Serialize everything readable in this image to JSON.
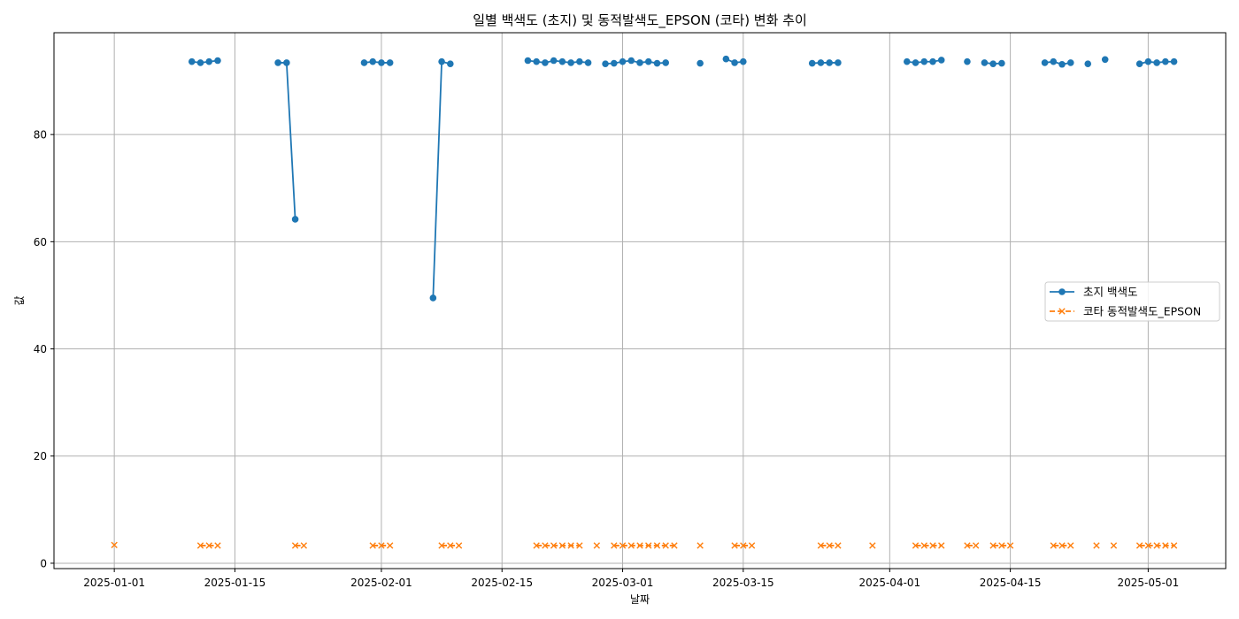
{
  "chart_data": {
    "type": "line",
    "title": "일별 백색도 (초지) 및 동적발색도_EPSON (코타) 변화 추이",
    "xlabel": "날짜",
    "ylabel": "값",
    "x_tick_labels": [
      "2025-01-01",
      "2025-01-15",
      "2025-02-01",
      "2025-02-15",
      "2025-03-01",
      "2025-03-15",
      "2025-04-01",
      "2025-04-15",
      "2025-05-01"
    ],
    "y_ticks": [
      0,
      20,
      40,
      60,
      80
    ],
    "xlim": [
      "2024-12-25",
      "2025-05-10"
    ],
    "ylim": [
      -1,
      99
    ],
    "grid": true,
    "legend_position": "center-right",
    "series": [
      {
        "name": "초지 백색도",
        "color": "#1f77b4",
        "marker": "circle",
        "line_style": "solid",
        "points": [
          [
            "2025-01-10",
            93.6
          ],
          [
            "2025-01-11",
            93.4
          ],
          [
            "2025-01-12",
            93.6
          ],
          [
            "2025-01-13",
            93.8
          ],
          [
            "2025-01-20",
            93.4
          ],
          [
            "2025-01-21",
            93.4
          ],
          [
            "2025-01-22",
            64.2
          ],
          [
            "2025-01-30",
            93.4
          ],
          [
            "2025-01-31",
            93.6
          ],
          [
            "2025-02-01",
            93.4
          ],
          [
            "2025-02-02",
            93.4
          ],
          [
            "2025-02-07",
            49.5
          ],
          [
            "2025-02-08",
            93.6
          ],
          [
            "2025-02-09",
            93.2
          ],
          [
            "2025-02-18",
            93.8
          ],
          [
            "2025-02-19",
            93.6
          ],
          [
            "2025-02-20",
            93.4
          ],
          [
            "2025-02-21",
            93.8
          ],
          [
            "2025-02-22",
            93.6
          ],
          [
            "2025-02-23",
            93.4
          ],
          [
            "2025-02-24",
            93.6
          ],
          [
            "2025-02-25",
            93.4
          ],
          [
            "2025-02-27",
            93.2
          ],
          [
            "2025-02-28",
            93.3
          ],
          [
            "2025-03-01",
            93.6
          ],
          [
            "2025-03-02",
            93.8
          ],
          [
            "2025-03-03",
            93.4
          ],
          [
            "2025-03-04",
            93.6
          ],
          [
            "2025-03-05",
            93.3
          ],
          [
            "2025-03-06",
            93.4
          ],
          [
            "2025-03-10",
            93.3
          ],
          [
            "2025-03-13",
            94.1
          ],
          [
            "2025-03-14",
            93.4
          ],
          [
            "2025-03-15",
            93.6
          ],
          [
            "2025-03-23",
            93.3
          ],
          [
            "2025-03-24",
            93.4
          ],
          [
            "2025-03-25",
            93.4
          ],
          [
            "2025-03-26",
            93.4
          ],
          [
            "2025-04-03",
            93.6
          ],
          [
            "2025-04-04",
            93.4
          ],
          [
            "2025-04-05",
            93.6
          ],
          [
            "2025-04-06",
            93.6
          ],
          [
            "2025-04-07",
            93.9
          ],
          [
            "2025-04-10",
            93.6
          ],
          [
            "2025-04-12",
            93.4
          ],
          [
            "2025-04-13",
            93.2
          ],
          [
            "2025-04-14",
            93.3
          ],
          [
            "2025-04-19",
            93.4
          ],
          [
            "2025-04-20",
            93.6
          ],
          [
            "2025-04-21",
            93.1
          ],
          [
            "2025-04-22",
            93.4
          ],
          [
            "2025-04-24",
            93.2
          ],
          [
            "2025-04-26",
            94.0
          ],
          [
            "2025-04-30",
            93.2
          ],
          [
            "2025-05-01",
            93.6
          ],
          [
            "2025-05-02",
            93.4
          ],
          [
            "2025-05-03",
            93.6
          ],
          [
            "2025-05-04",
            93.6
          ]
        ]
      },
      {
        "name": "코타 동적발색도_EPSON",
        "color": "#ff7f0e",
        "marker": "x",
        "line_style": "dashed",
        "points": [
          [
            "2025-01-01",
            3.4
          ],
          [
            "2025-01-11",
            3.3
          ],
          [
            "2025-01-12",
            3.3
          ],
          [
            "2025-01-13",
            3.3
          ],
          [
            "2025-01-22",
            3.3
          ],
          [
            "2025-01-23",
            3.3
          ],
          [
            "2025-01-31",
            3.3
          ],
          [
            "2025-02-01",
            3.3
          ],
          [
            "2025-02-02",
            3.3
          ],
          [
            "2025-02-08",
            3.3
          ],
          [
            "2025-02-09",
            3.3
          ],
          [
            "2025-02-10",
            3.3
          ],
          [
            "2025-02-19",
            3.3
          ],
          [
            "2025-02-20",
            3.3
          ],
          [
            "2025-02-21",
            3.3
          ],
          [
            "2025-02-22",
            3.3
          ],
          [
            "2025-02-23",
            3.3
          ],
          [
            "2025-02-24",
            3.3
          ],
          [
            "2025-02-26",
            3.3
          ],
          [
            "2025-02-28",
            3.3
          ],
          [
            "2025-03-01",
            3.3
          ],
          [
            "2025-03-02",
            3.3
          ],
          [
            "2025-03-03",
            3.3
          ],
          [
            "2025-03-04",
            3.3
          ],
          [
            "2025-03-05",
            3.3
          ],
          [
            "2025-03-06",
            3.3
          ],
          [
            "2025-03-07",
            3.3
          ],
          [
            "2025-03-10",
            3.3
          ],
          [
            "2025-03-14",
            3.3
          ],
          [
            "2025-03-15",
            3.3
          ],
          [
            "2025-03-16",
            3.3
          ],
          [
            "2025-03-24",
            3.3
          ],
          [
            "2025-03-25",
            3.3
          ],
          [
            "2025-03-26",
            3.3
          ],
          [
            "2025-03-30",
            3.3
          ],
          [
            "2025-04-04",
            3.3
          ],
          [
            "2025-04-05",
            3.3
          ],
          [
            "2025-04-06",
            3.3
          ],
          [
            "2025-04-07",
            3.3
          ],
          [
            "2025-04-10",
            3.3
          ],
          [
            "2025-04-11",
            3.3
          ],
          [
            "2025-04-13",
            3.3
          ],
          [
            "2025-04-14",
            3.3
          ],
          [
            "2025-04-15",
            3.3
          ],
          [
            "2025-04-20",
            3.3
          ],
          [
            "2025-04-21",
            3.3
          ],
          [
            "2025-04-22",
            3.3
          ],
          [
            "2025-04-25",
            3.3
          ],
          [
            "2025-04-27",
            3.3
          ],
          [
            "2025-04-30",
            3.3
          ],
          [
            "2025-05-01",
            3.3
          ],
          [
            "2025-05-02",
            3.3
          ],
          [
            "2025-05-03",
            3.3
          ],
          [
            "2025-05-04",
            3.3
          ]
        ]
      }
    ]
  }
}
